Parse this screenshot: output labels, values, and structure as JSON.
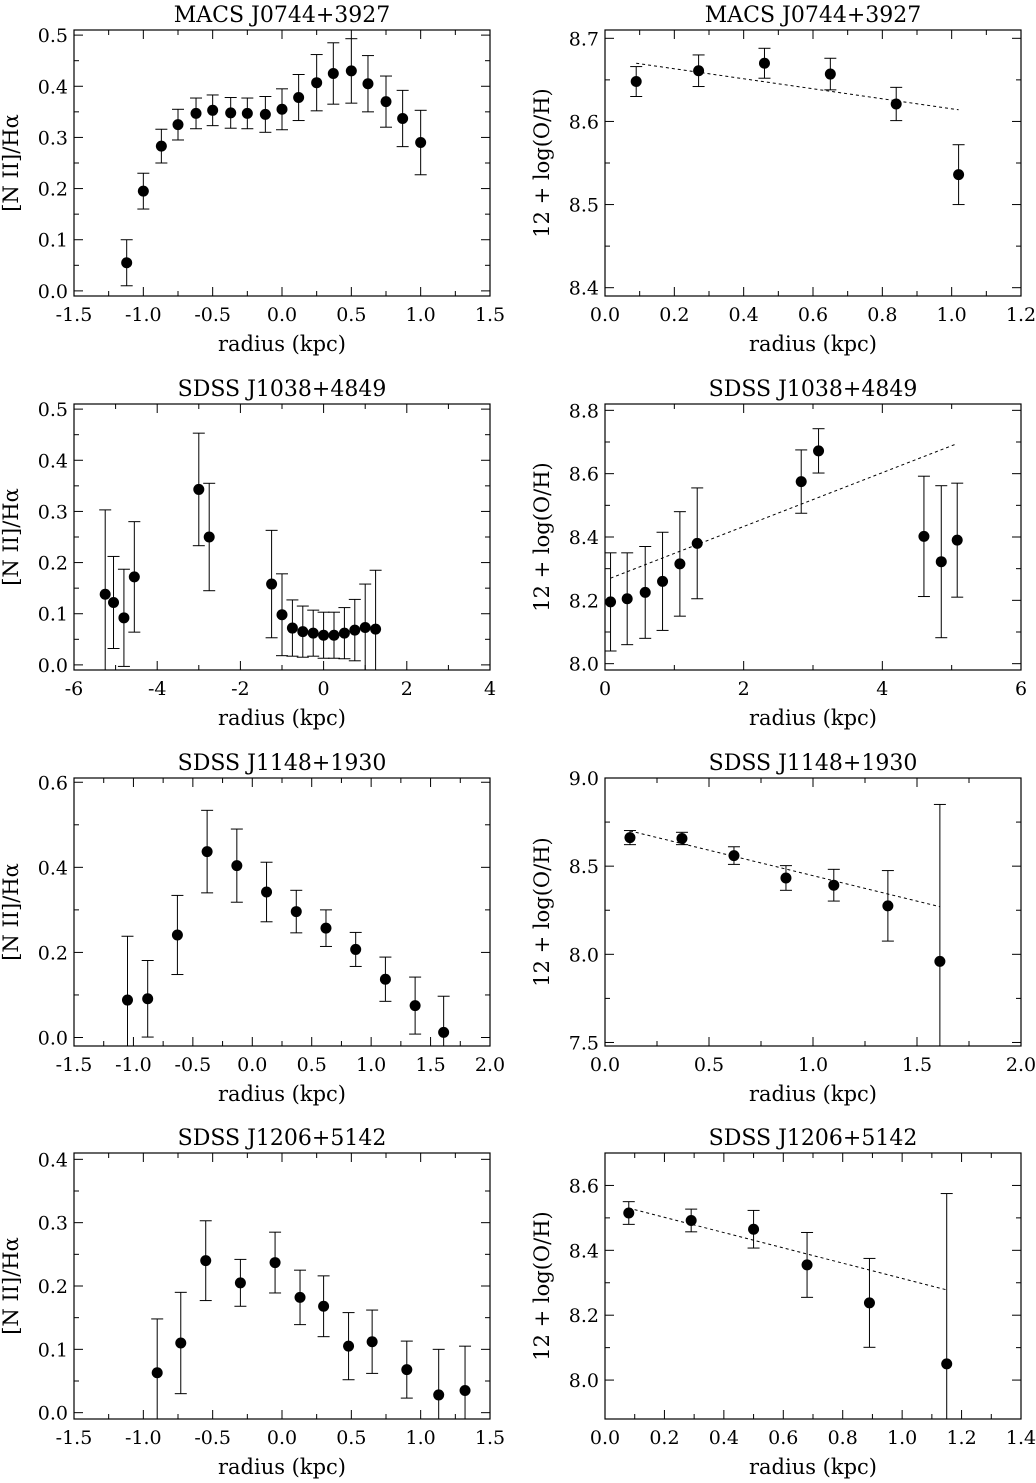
{
  "chart_data": [
    {
      "type": "scatter",
      "title": "MACS J0744+3927",
      "xlabel": "radius (kpc)",
      "ylabel": "[N II]/Hα",
      "xlim": [
        -1.5,
        1.5
      ],
      "ylim": [
        -0.01,
        0.51
      ],
      "xticks": [
        -1.5,
        -1.0,
        -0.5,
        0.0,
        0.5,
        1.0,
        1.5
      ],
      "xtick_labels": [
        "-1.5",
        "-1.0",
        "-0.5",
        "0.0",
        "0.5",
        "1.0",
        "1.5"
      ],
      "yticks": [
        0.0,
        0.1,
        0.2,
        0.3,
        0.4,
        0.5
      ],
      "ytick_labels": [
        "0.0",
        "0.1",
        "0.2",
        "0.3",
        "0.4",
        "0.5"
      ],
      "x": [
        -1.12,
        -1.0,
        -0.87,
        -0.75,
        -0.62,
        -0.5,
        -0.37,
        -0.25,
        -0.12,
        0.0,
        0.12,
        0.25,
        0.37,
        0.5,
        0.62,
        0.75,
        0.87,
        1.0
      ],
      "y": [
        0.055,
        0.195,
        0.283,
        0.325,
        0.347,
        0.353,
        0.348,
        0.347,
        0.345,
        0.355,
        0.378,
        0.407,
        0.425,
        0.43,
        0.405,
        0.37,
        0.337,
        0.29
      ],
      "yerr": [
        0.045,
        0.035,
        0.033,
        0.03,
        0.03,
        0.03,
        0.03,
        0.03,
        0.035,
        0.04,
        0.045,
        0.055,
        0.06,
        0.063,
        0.055,
        0.05,
        0.055,
        0.063
      ]
    },
    {
      "type": "scatter",
      "title": "MACS J0744+3927",
      "xlabel": "radius (kpc)",
      "ylabel": "12 + log(O/H)",
      "xlim": [
        0.0,
        1.2
      ],
      "ylim": [
        8.39,
        8.71
      ],
      "xticks": [
        0.0,
        0.2,
        0.4,
        0.6,
        0.8,
        1.0,
        1.2
      ],
      "xtick_labels": [
        "0.0",
        "0.2",
        "0.4",
        "0.6",
        "0.8",
        "1.0",
        "1.2"
      ],
      "yticks": [
        8.4,
        8.5,
        8.6,
        8.7
      ],
      "ytick_labels": [
        "8.4",
        "8.5",
        "8.6",
        "8.7"
      ],
      "x": [
        0.09,
        0.27,
        0.46,
        0.65,
        0.84,
        1.02
      ],
      "y": [
        8.648,
        8.661,
        8.67,
        8.657,
        8.621,
        8.536
      ],
      "yerr": [
        0.018,
        0.019,
        0.018,
        0.019,
        0.02,
        0.036
      ],
      "fit": {
        "x": [
          0.09,
          1.02
        ],
        "y": [
          8.67,
          8.614
        ]
      }
    },
    {
      "type": "scatter",
      "title": "SDSS J1038+4849",
      "xlabel": "radius (kpc)",
      "ylabel": "[N II]/Hα",
      "xlim": [
        -6,
        4
      ],
      "ylim": [
        -0.01,
        0.51
      ],
      "xticks": [
        -6,
        -4,
        -2,
        0,
        2,
        4
      ],
      "xtick_labels": [
        "-6",
        "-4",
        "-2",
        "0",
        "2",
        "4"
      ],
      "yticks": [
        0.0,
        0.1,
        0.2,
        0.3,
        0.4,
        0.5
      ],
      "ytick_labels": [
        "0.0",
        "0.1",
        "0.2",
        "0.3",
        "0.4",
        "0.5"
      ],
      "x": [
        -5.25,
        -5.05,
        -4.8,
        -4.55,
        -3.0,
        -2.75,
        -1.25,
        -1.0,
        -0.75,
        -0.5,
        -0.25,
        0.0,
        0.25,
        0.5,
        0.75,
        1.0,
        1.25
      ],
      "y": [
        0.138,
        0.122,
        0.092,
        0.172,
        0.343,
        0.25,
        0.158,
        0.098,
        0.072,
        0.065,
        0.062,
        0.058,
        0.058,
        0.062,
        0.068,
        0.073,
        0.07
      ],
      "yerr": [
        0.165,
        0.09,
        0.095,
        0.108,
        0.11,
        0.105,
        0.105,
        0.08,
        0.055,
        0.05,
        0.045,
        0.045,
        0.045,
        0.05,
        0.06,
        0.085,
        0.115
      ]
    },
    {
      "type": "scatter",
      "title": "SDSS J1038+4849",
      "xlabel": "radius (kpc)",
      "ylabel": "12 + log(O/H)",
      "xlim": [
        0,
        6
      ],
      "ylim": [
        7.98,
        8.82
      ],
      "xticks": [
        0,
        2,
        4,
        6
      ],
      "xtick_labels": [
        "0",
        "2",
        "4",
        "6"
      ],
      "yticks": [
        8.0,
        8.2,
        8.4,
        8.6,
        8.8
      ],
      "ytick_labels": [
        "8.0",
        "8.2",
        "8.4",
        "8.6",
        "8.8"
      ],
      "x": [
        0.08,
        0.32,
        0.58,
        0.83,
        1.08,
        1.33,
        2.83,
        3.08,
        4.6,
        4.85,
        5.08
      ],
      "y": [
        8.195,
        8.205,
        8.225,
        8.26,
        8.315,
        8.38,
        8.575,
        8.672,
        8.402,
        8.322,
        8.39
      ],
      "yerr": [
        0.155,
        0.145,
        0.145,
        0.155,
        0.165,
        0.175,
        0.1,
        0.07,
        0.19,
        0.24,
        0.18
      ],
      "fit": {
        "x": [
          0.08,
          5.08
        ],
        "y": [
          8.27,
          8.695
        ]
      }
    },
    {
      "type": "scatter",
      "title": "SDSS J1148+1930",
      "xlabel": "radius (kpc)",
      "ylabel": "[N II]/Hα",
      "xlim": [
        -1.5,
        2.0
      ],
      "ylim": [
        -0.02,
        0.61
      ],
      "xticks": [
        -1.5,
        -1.0,
        -0.5,
        0.0,
        0.5,
        1.0,
        1.5,
        2.0
      ],
      "xtick_labels": [
        "-1.5",
        "-1.0",
        "-0.5",
        "0.0",
        "0.5",
        "1.0",
        "1.5",
        "2.0"
      ],
      "yticks": [
        0.0,
        0.2,
        0.4,
        0.6
      ],
      "ytick_labels": [
        "0.0",
        "0.2",
        "0.4",
        "0.6"
      ],
      "x": [
        -1.05,
        -0.88,
        -0.63,
        -0.38,
        -0.13,
        0.12,
        0.37,
        0.62,
        0.87,
        1.12,
        1.37,
        1.61
      ],
      "y": [
        0.088,
        0.091,
        0.241,
        0.437,
        0.404,
        0.342,
        0.296,
        0.257,
        0.207,
        0.137,
        0.075,
        0.012
      ],
      "yerr": [
        0.15,
        0.09,
        0.093,
        0.097,
        0.086,
        0.07,
        0.05,
        0.043,
        0.04,
        0.052,
        0.067,
        0.085
      ]
    },
    {
      "type": "scatter",
      "title": "SDSS J1148+1930",
      "xlabel": "radius (kpc)",
      "ylabel": "12 + log(O/H)",
      "xlim": [
        0.0,
        2.0
      ],
      "ylim": [
        7.48,
        9.0
      ],
      "xticks": [
        0.0,
        0.5,
        1.0,
        1.5,
        2.0
      ],
      "xtick_labels": [
        "0.0",
        "0.5",
        "1.0",
        "1.5",
        "2.0"
      ],
      "yticks": [
        7.5,
        8.0,
        8.5,
        9.0
      ],
      "ytick_labels": [
        "7.5",
        "8.0",
        "8.5",
        "9.0"
      ],
      "x": [
        0.12,
        0.37,
        0.62,
        0.87,
        1.1,
        1.36,
        1.61
      ],
      "y": [
        8.662,
        8.657,
        8.56,
        8.433,
        8.392,
        8.275,
        7.96
      ],
      "yerr": [
        0.04,
        0.035,
        0.05,
        0.07,
        0.09,
        0.2,
        0.89
      ],
      "fit": {
        "x": [
          0.12,
          1.61
        ],
        "y": [
          8.7,
          8.27
        ]
      }
    },
    {
      "type": "scatter",
      "title": "SDSS J1206+5142",
      "xlabel": "radius (kpc)",
      "ylabel": "[N II]/Hα",
      "xlim": [
        -1.5,
        1.5
      ],
      "ylim": [
        -0.01,
        0.41
      ],
      "xticks": [
        -1.5,
        -1.0,
        -0.5,
        0.0,
        0.5,
        1.0,
        1.5
      ],
      "xtick_labels": [
        "-1.5",
        "-1.0",
        "-0.5",
        "0.0",
        "0.5",
        "1.0",
        "1.5"
      ],
      "yticks": [
        0.0,
        0.1,
        0.2,
        0.3,
        0.4
      ],
      "ytick_labels": [
        "0.0",
        "0.1",
        "0.2",
        "0.3",
        "0.4"
      ],
      "x": [
        -0.9,
        -0.73,
        -0.55,
        -0.3,
        -0.05,
        0.13,
        0.3,
        0.48,
        0.65,
        0.9,
        1.13,
        1.32
      ],
      "y": [
        0.063,
        0.11,
        0.24,
        0.205,
        0.237,
        0.182,
        0.168,
        0.105,
        0.112,
        0.068,
        0.028,
        0.035
      ],
      "yerr": [
        0.085,
        0.08,
        0.063,
        0.037,
        0.048,
        0.043,
        0.048,
        0.053,
        0.05,
        0.045,
        0.072,
        0.07
      ]
    },
    {
      "type": "scatter",
      "title": "SDSS J1206+5142",
      "xlabel": "radius (kpc)",
      "ylabel": "12 + log(O/H)",
      "xlim": [
        0.0,
        1.4
      ],
      "ylim": [
        7.88,
        8.7
      ],
      "xticks": [
        0.0,
        0.2,
        0.4,
        0.6,
        0.8,
        1.0,
        1.2,
        1.4
      ],
      "xtick_labels": [
        "0.0",
        "0.2",
        "0.4",
        "0.6",
        "0.8",
        "1.0",
        "1.2",
        "1.4"
      ],
      "yticks": [
        8.0,
        8.2,
        8.4,
        8.6
      ],
      "ytick_labels": [
        "8.0",
        "8.2",
        "8.4",
        "8.6"
      ],
      "x": [
        0.08,
        0.29,
        0.5,
        0.68,
        0.89,
        1.15
      ],
      "y": [
        8.515,
        8.492,
        8.465,
        8.355,
        8.238,
        8.05
      ],
      "yerr": [
        0.035,
        0.035,
        0.058,
        0.1,
        0.137,
        0.525
      ],
      "fit": {
        "x": [
          0.08,
          1.15
        ],
        "y": [
          8.53,
          8.278
        ]
      }
    }
  ]
}
